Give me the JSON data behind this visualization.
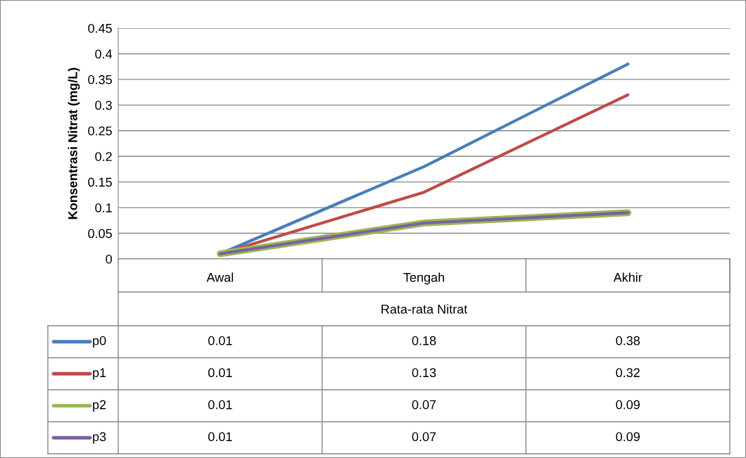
{
  "chart_data": {
    "type": "line",
    "xlabel": "Rata-rata Nitrat",
    "ylabel": "Konsentrasi Nitrat (mg/L)",
    "categories": [
      "Awal",
      "Tengah",
      "Akhir"
    ],
    "series": [
      {
        "name": "p0",
        "color": "#4a7ebb",
        "values": [
          0.01,
          0.18,
          0.38
        ]
      },
      {
        "name": "p1",
        "color": "#be4b48",
        "values": [
          0.01,
          0.13,
          0.32
        ]
      },
      {
        "name": "p2",
        "color": "#98b954",
        "values": [
          0.01,
          0.07,
          0.09
        ]
      },
      {
        "name": "p3",
        "color": "#7d5fa0",
        "values": [
          0.01,
          0.07,
          0.09
        ]
      }
    ],
    "ylim": [
      0,
      0.45
    ],
    "yticks": [
      0,
      0.05,
      {
        "value": 0.1,
        "label": "0.1"
      },
      0.15,
      {
        "value": 0.2,
        "label": "0.2"
      },
      0.25,
      {
        "value": 0.3,
        "label": "0.3"
      },
      0.35,
      {
        "value": 0.4,
        "label": "0.4"
      },
      0.45
    ],
    "grid": "y",
    "legend": "bottom",
    "data_labels": true,
    "marker": "none",
    "line_style": "solid"
  }
}
